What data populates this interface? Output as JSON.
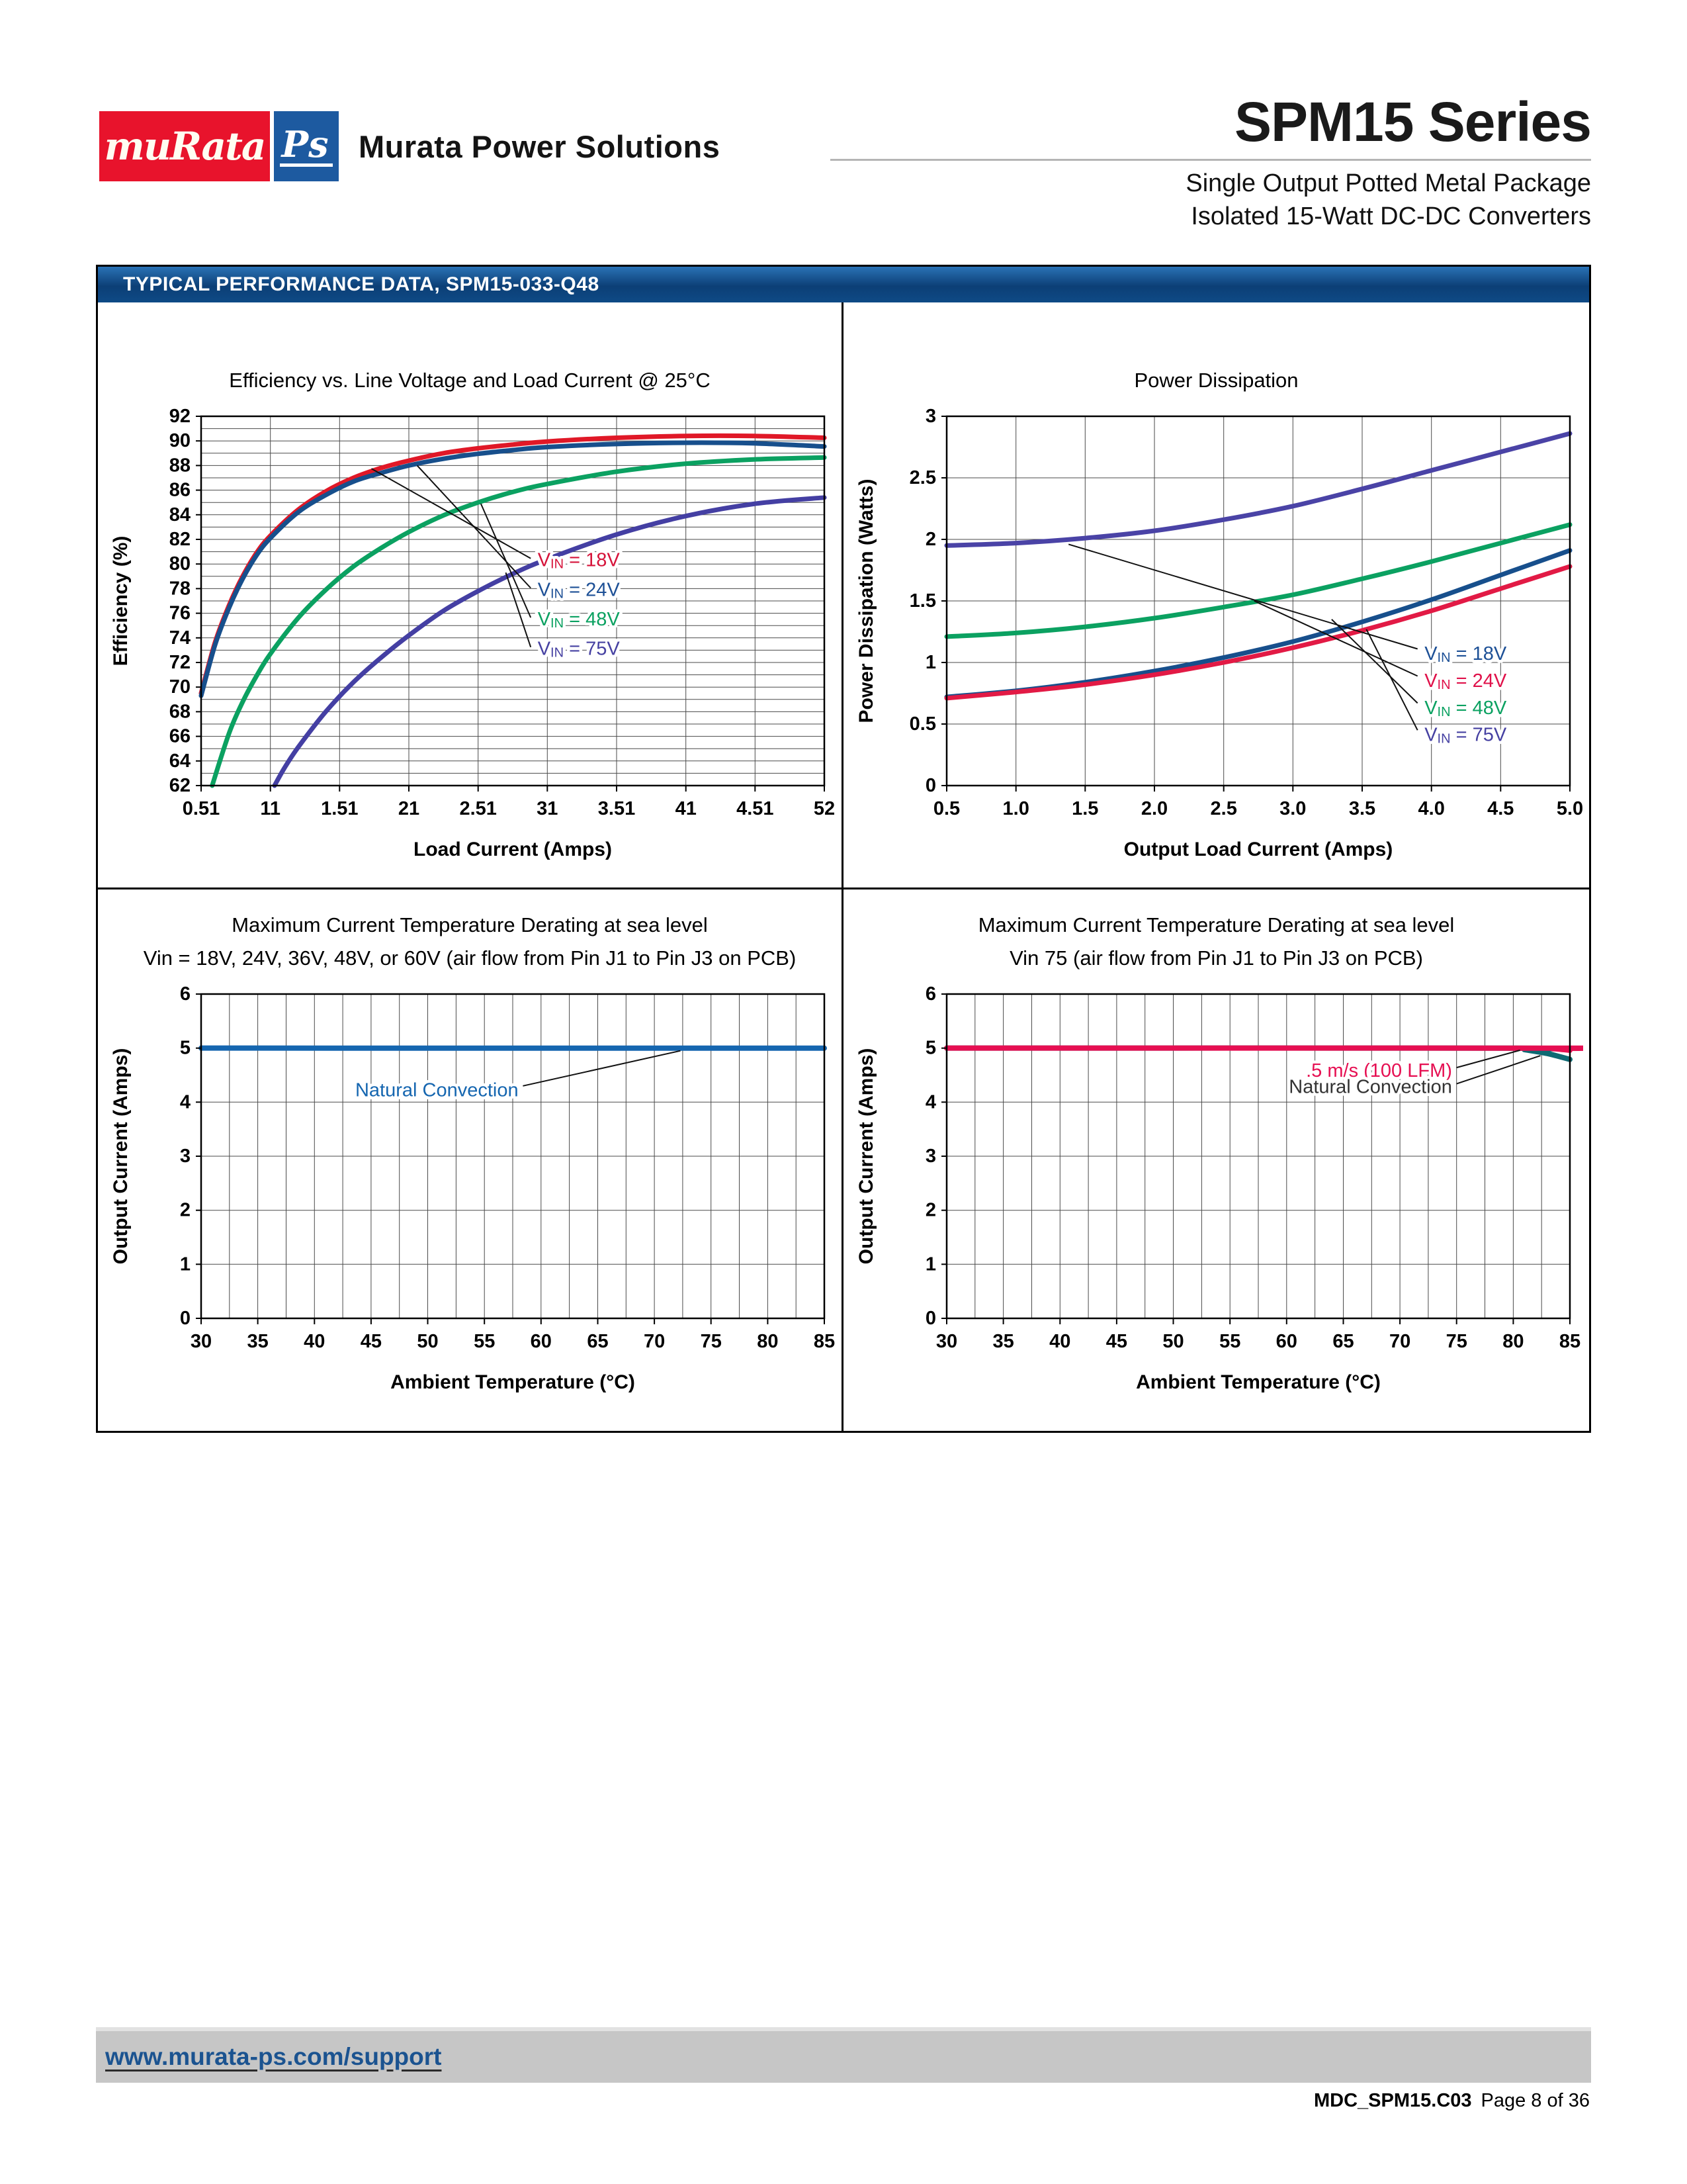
{
  "header": {
    "logo": {
      "murata_text": "muRata",
      "ps_text": "Ps",
      "brand_text": "Murata Power Solutions",
      "red": "#e8132c",
      "blue": "#1d5aa0"
    },
    "series_title": "SPM15 Series",
    "subtitle_line1": "Single Output Potted Metal Package",
    "subtitle_line2": "Isolated 15-Watt DC-DC Converters"
  },
  "section": {
    "title": "TYPICAL PERFORMANCE DATA, SPM15-033-Q48",
    "bar_color": "#0e4a86"
  },
  "footer": {
    "link": "www.murata-ps.com/support",
    "doc_id": "MDC_SPM15.C03",
    "page_info": "Page 8 of 36"
  },
  "chart_data": [
    {
      "type": "line",
      "title": "Efficiency vs. Line Voltage and Load Current @ 25°C",
      "xlabel": "Load Current (Amps)",
      "ylabel": "Efficiency (%)",
      "xlim": [
        0.5,
        5.0
      ],
      "ylim": [
        62,
        92
      ],
      "grid": {
        "x": 0.5,
        "y": 1
      },
      "x_ticks": {
        "pos": [
          0.5,
          1,
          1.5,
          2,
          2.5,
          3,
          3.5,
          4,
          4.5,
          5
        ],
        "labels": [
          "0.51",
          "11",
          "1.51",
          "21",
          "2.51",
          "31",
          "3.51",
          "41",
          "4.51",
          "52"
        ]
      },
      "y_ticks": {
        "pos": [
          62,
          64,
          66,
          68,
          70,
          72,
          74,
          76,
          78,
          80,
          82,
          84,
          86,
          88,
          90,
          92
        ],
        "labels": [
          "62",
          "64",
          "66",
          "68",
          "70",
          "72",
          "74",
          "76",
          "78",
          "80",
          "82",
          "84",
          "86",
          "88",
          "90",
          "92"
        ]
      },
      "series": [
        {
          "name": "VIN = 18V",
          "color": "#e01827",
          "points": [
            [
              0.5,
              69.5
            ],
            [
              0.6,
              73.6
            ],
            [
              0.7,
              76.6
            ],
            [
              0.8,
              79.0
            ],
            [
              0.9,
              80.9
            ],
            [
              1.0,
              82.3
            ],
            [
              1.2,
              84.4
            ],
            [
              1.4,
              85.9
            ],
            [
              1.6,
              87.0
            ],
            [
              1.8,
              87.8
            ],
            [
              2.0,
              88.4
            ],
            [
              2.25,
              89.0
            ],
            [
              2.5,
              89.4
            ],
            [
              2.75,
              89.7
            ],
            [
              3.0,
              89.95
            ],
            [
              3.5,
              90.25
            ],
            [
              4.0,
              90.4
            ],
            [
              4.5,
              90.4
            ],
            [
              5.0,
              90.25
            ]
          ]
        },
        {
          "name": "VIN = 24V",
          "color": "#174f8c",
          "points": [
            [
              0.5,
              69.3
            ],
            [
              0.6,
              73.4
            ],
            [
              0.7,
              76.4
            ],
            [
              0.8,
              78.8
            ],
            [
              0.9,
              80.7
            ],
            [
              1.0,
              82.1
            ],
            [
              1.2,
              84.2
            ],
            [
              1.4,
              85.6
            ],
            [
              1.6,
              86.7
            ],
            [
              1.8,
              87.4
            ],
            [
              2.0,
              88.0
            ],
            [
              2.25,
              88.55
            ],
            [
              2.5,
              88.95
            ],
            [
              2.75,
              89.25
            ],
            [
              3.0,
              89.5
            ],
            [
              3.5,
              89.75
            ],
            [
              4.0,
              89.85
            ],
            [
              4.5,
              89.8
            ],
            [
              5.0,
              89.55
            ]
          ]
        },
        {
          "name": "VIN = 48V",
          "color": "#0ba161",
          "points": [
            [
              0.58,
              62.0
            ],
            [
              0.7,
              66.2
            ],
            [
              0.8,
              68.8
            ],
            [
              0.9,
              70.9
            ],
            [
              1.0,
              72.7
            ],
            [
              1.2,
              75.6
            ],
            [
              1.4,
              77.9
            ],
            [
              1.6,
              79.8
            ],
            [
              1.8,
              81.3
            ],
            [
              2.0,
              82.6
            ],
            [
              2.25,
              83.95
            ],
            [
              2.5,
              85.0
            ],
            [
              2.75,
              85.85
            ],
            [
              3.0,
              86.5
            ],
            [
              3.5,
              87.5
            ],
            [
              4.0,
              88.15
            ],
            [
              4.5,
              88.5
            ],
            [
              5.0,
              88.65
            ]
          ]
        },
        {
          "name": "VIN = 75V",
          "color": "#443fa3",
          "points": [
            [
              1.03,
              62.0
            ],
            [
              1.1,
              63.4
            ],
            [
              1.2,
              65.1
            ],
            [
              1.4,
              68.0
            ],
            [
              1.6,
              70.4
            ],
            [
              1.8,
              72.4
            ],
            [
              2.0,
              74.2
            ],
            [
              2.25,
              76.2
            ],
            [
              2.5,
              77.8
            ],
            [
              2.75,
              79.2
            ],
            [
              3.0,
              80.4
            ],
            [
              3.5,
              82.4
            ],
            [
              4.0,
              83.9
            ],
            [
              4.5,
              84.9
            ],
            [
              5.0,
              85.4
            ]
          ]
        }
      ],
      "annotations": [
        {
          "text": "VIN = 18V",
          "color": "#d6133a",
          "x": 2.93,
          "y": 80.3,
          "anchor": "start",
          "line": [
            1.73,
            87.75,
            2.88,
            80.45
          ]
        },
        {
          "text": "VIN = 24V",
          "color": "#1d5096",
          "x": 2.93,
          "y": 77.9,
          "anchor": "start",
          "line": [
            2.06,
            88.0,
            2.88,
            78.05
          ]
        },
        {
          "text": "VIN = 48V",
          "color": "#0ba161",
          "x": 2.93,
          "y": 75.5,
          "anchor": "start",
          "line": [
            2.52,
            84.9,
            2.88,
            75.65
          ]
        },
        {
          "text": "VIN = 75V",
          "color": "#4641a2",
          "x": 2.93,
          "y": 73.1,
          "anchor": "start",
          "line": [
            2.7,
            79.3,
            2.88,
            73.25
          ]
        }
      ]
    },
    {
      "type": "line",
      "title": "Power Dissipation",
      "xlabel": "Output Load Current (Amps)",
      "ylabel": "Power Dissipation (Watts)",
      "xlim": [
        0.5,
        5.0
      ],
      "ylim": [
        0,
        3
      ],
      "grid": {
        "x": 0.5,
        "y": 0.5
      },
      "x_ticks": {
        "pos": [
          0.5,
          1,
          1.5,
          2,
          2.5,
          3,
          3.5,
          4,
          4.5,
          5
        ],
        "labels": [
          "0.5",
          "1.0",
          "1.5",
          "2.0",
          "2.5",
          "3.0",
          "3.5",
          "4.0",
          "4.5",
          "5.0"
        ]
      },
      "y_ticks": {
        "pos": [
          0,
          0.5,
          1,
          1.5,
          2,
          2.5,
          3
        ],
        "labels": [
          "0",
          "0.5",
          "1",
          "1.5",
          "2",
          "2.5",
          "3"
        ]
      },
      "series": [
        {
          "name": "VIN = 75V",
          "color": "#4a43a6",
          "points": [
            [
              0.5,
              1.95
            ],
            [
              1.0,
              1.97
            ],
            [
              1.5,
              2.01
            ],
            [
              2.0,
              2.07
            ],
            [
              2.5,
              2.16
            ],
            [
              3.0,
              2.27
            ],
            [
              3.5,
              2.41
            ],
            [
              4.0,
              2.56
            ],
            [
              4.5,
              2.71
            ],
            [
              5.0,
              2.86
            ]
          ]
        },
        {
          "name": "VIN = 48V",
          "color": "#0ba161",
          "points": [
            [
              0.5,
              1.21
            ],
            [
              1.0,
              1.24
            ],
            [
              1.5,
              1.29
            ],
            [
              2.0,
              1.36
            ],
            [
              2.5,
              1.45
            ],
            [
              3.0,
              1.55
            ],
            [
              3.5,
              1.68
            ],
            [
              4.0,
              1.82
            ],
            [
              4.5,
              1.97
            ],
            [
              5.0,
              2.12
            ]
          ]
        },
        {
          "name": "VIN = 24V",
          "color": "#174f8c",
          "points": [
            [
              0.5,
              0.72
            ],
            [
              1.0,
              0.77
            ],
            [
              1.5,
              0.84
            ],
            [
              2.0,
              0.93
            ],
            [
              2.5,
              1.04
            ],
            [
              3.0,
              1.17
            ],
            [
              3.5,
              1.33
            ],
            [
              4.0,
              1.51
            ],
            [
              4.5,
              1.71
            ],
            [
              5.0,
              1.91
            ]
          ]
        },
        {
          "name": "VIN = 18V",
          "color": "#e21a45",
          "points": [
            [
              0.5,
              0.71
            ],
            [
              1.0,
              0.76
            ],
            [
              1.5,
              0.82
            ],
            [
              2.0,
              0.9
            ],
            [
              2.5,
              1.0
            ],
            [
              3.0,
              1.12
            ],
            [
              3.5,
              1.26
            ],
            [
              4.0,
              1.42
            ],
            [
              4.5,
              1.6
            ],
            [
              5.0,
              1.78
            ]
          ]
        }
      ],
      "annotations": [
        {
          "text": "VIN = 18V",
          "color": "#1d5096",
          "x": 3.95,
          "y": 1.07,
          "anchor": "start",
          "line": [
            1.38,
            1.96,
            3.9,
            1.11
          ]
        },
        {
          "text": "VIN = 24V",
          "color": "#e0114a",
          "x": 3.95,
          "y": 0.85,
          "anchor": "start",
          "line": [
            2.72,
            1.5,
            3.9,
            0.89
          ]
        },
        {
          "text": "VIN = 48V",
          "color": "#0ba161",
          "x": 3.95,
          "y": 0.63,
          "anchor": "start",
          "line": [
            3.28,
            1.35,
            3.9,
            0.67
          ]
        },
        {
          "text": "VIN = 75V",
          "color": "#4641a2",
          "x": 3.95,
          "y": 0.41,
          "anchor": "start",
          "line": [
            3.53,
            1.27,
            3.9,
            0.45
          ]
        }
      ]
    },
    {
      "type": "line",
      "title": "Maximum Current Temperature Derating at sea level",
      "subtitle": "Vin = 18V, 24V, 36V, 48V, or 60V (air flow from Pin J1 to Pin J3 on PCB)",
      "xlabel": "Ambient Temperature (°C)",
      "ylabel": "Output Current (Amps)",
      "xlim": [
        30,
        85
      ],
      "ylim": [
        0,
        6
      ],
      "grid": {
        "x": 2.5,
        "y": 1
      },
      "x_ticks": {
        "pos": [
          30,
          35,
          40,
          45,
          50,
          55,
          60,
          65,
          70,
          75,
          80,
          85
        ],
        "labels": [
          "30",
          "35",
          "40",
          "45",
          "50",
          "55",
          "60",
          "65",
          "70",
          "75",
          "80",
          "85"
        ]
      },
      "y_ticks": {
        "pos": [
          0,
          1,
          2,
          3,
          4,
          5,
          6
        ],
        "labels": [
          "0",
          "1",
          "2",
          "3",
          "4",
          "5",
          "6"
        ]
      },
      "series": [
        {
          "name": "Natural Convection",
          "color": "#1566b0",
          "width": 8,
          "points": [
            [
              30,
              5
            ],
            [
              55,
              5
            ],
            [
              85,
              5
            ]
          ]
        }
      ],
      "annotations": [
        {
          "text": "Natural Convection",
          "color": "#1566b0",
          "x": 58.0,
          "y": 4.22,
          "anchor": "end",
          "line": [
            58.4,
            4.3,
            72.3,
            4.95
          ]
        }
      ]
    },
    {
      "type": "line",
      "title": "Maximum Current Temperature Derating at sea level",
      "subtitle": "Vin 75 (air flow from Pin J1 to Pin J3 on PCB)",
      "xlabel": "Ambient Temperature (°C)",
      "ylabel": "Output Current (Amps)",
      "xlim": [
        30,
        85
      ],
      "ylim": [
        0,
        6
      ],
      "grid": {
        "x": 2.5,
        "y": 1
      },
      "x_ticks": {
        "pos": [
          30,
          35,
          40,
          45,
          50,
          55,
          60,
          65,
          70,
          75,
          80,
          85
        ],
        "labels": [
          "30",
          "35",
          "40",
          "45",
          "50",
          "55",
          "60",
          "65",
          "70",
          "75",
          "80",
          "85"
        ]
      },
      "y_ticks": {
        "pos": [
          0,
          1,
          2,
          3,
          4,
          5,
          6
        ],
        "labels": [
          "0",
          "1",
          "2",
          "3",
          "4",
          "5",
          "6"
        ]
      },
      "series": [
        {
          "name": "Natural Convection",
          "color": "#0e6a73",
          "width": 8,
          "points": [
            [
              30,
              5
            ],
            [
              80,
              5
            ],
            [
              81,
              4.97
            ],
            [
              83,
              4.9
            ],
            [
              85,
              4.79
            ]
          ]
        },
        {
          "name": ".5 m/s (100 LFM)",
          "color": "#e60f52",
          "width": 8,
          "points": [
            [
              30,
              5
            ],
            [
              82.5,
              5
            ],
            [
              83.5,
              4.99
            ],
            [
              85,
              4.96
            ]
          ]
        }
      ],
      "annotations": [
        {
          "text": ".5 m/s (100 LFM)",
          "color": "#e60f52",
          "x": 74.6,
          "y": 4.58,
          "anchor": "end",
          "line": [
            75.0,
            4.64,
            80.6,
            4.96
          ]
        },
        {
          "text": "Natural Convection",
          "color": "#333333",
          "x": 74.6,
          "y": 4.28,
          "anchor": "end",
          "line": [
            75.0,
            4.34,
            82.4,
            4.86
          ]
        }
      ]
    }
  ]
}
